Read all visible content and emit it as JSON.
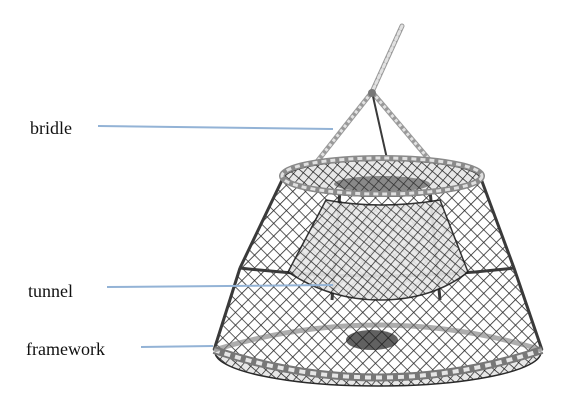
{
  "labels": {
    "bridle": "bridle",
    "tunnel": "tunnel",
    "framework": "framework"
  },
  "colors": {
    "leader": "#93b3d6",
    "net": "#2a2a2a",
    "rope": "#cfcfcf",
    "text": "#111111"
  }
}
